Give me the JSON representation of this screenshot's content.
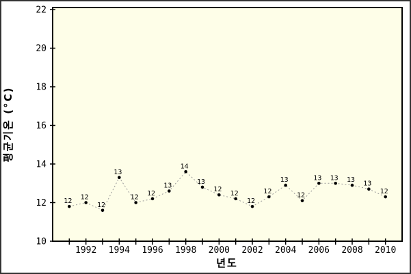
{
  "window": {
    "background": "#ffffff",
    "border_color": "#333333"
  },
  "chart_data": {
    "type": "line",
    "title": "",
    "xlabel": "년도",
    "ylabel": "평균기온 (°C)",
    "x": [
      1991,
      1992,
      1993,
      1994,
      1995,
      1996,
      1997,
      1998,
      1999,
      2000,
      2001,
      2002,
      2003,
      2004,
      2005,
      2006,
      2007,
      2008,
      2009,
      2010
    ],
    "values": [
      11.8,
      12.0,
      11.6,
      13.3,
      12.0,
      12.2,
      12.6,
      13.6,
      12.8,
      12.4,
      12.2,
      11.8,
      12.3,
      12.9,
      12.1,
      13.0,
      13.0,
      12.9,
      12.7,
      12.3
    ],
    "point_labels": [
      "12",
      "12",
      "12",
      "13",
      "12",
      "12",
      "13",
      "14",
      "13",
      "12",
      "12",
      "12",
      "12",
      "13",
      "12",
      "13",
      "13",
      "13",
      "13",
      "12"
    ],
    "xlim": [
      1990,
      2011
    ],
    "ylim": [
      10,
      22
    ],
    "y_ticks": [
      10,
      12,
      14,
      16,
      18,
      20,
      22
    ],
    "x_minor_ticks": [
      1991,
      1992,
      1993,
      1994,
      1995,
      1996,
      1997,
      1998,
      1999,
      2000,
      2001,
      2002,
      2003,
      2004,
      2005,
      2006,
      2007,
      2008,
      2009,
      2010
    ],
    "x_tick_labels": [
      "1992",
      "1994",
      "1996",
      "1998",
      "2000",
      "2002",
      "2004",
      "2006",
      "2008",
      "2010"
    ],
    "grid": false,
    "legend": null,
    "line_style": "dashed",
    "line_color": "#999999",
    "marker": "circle",
    "marker_color": "#000000",
    "plot_background": "#fefee8",
    "axis_color": "#000000"
  }
}
